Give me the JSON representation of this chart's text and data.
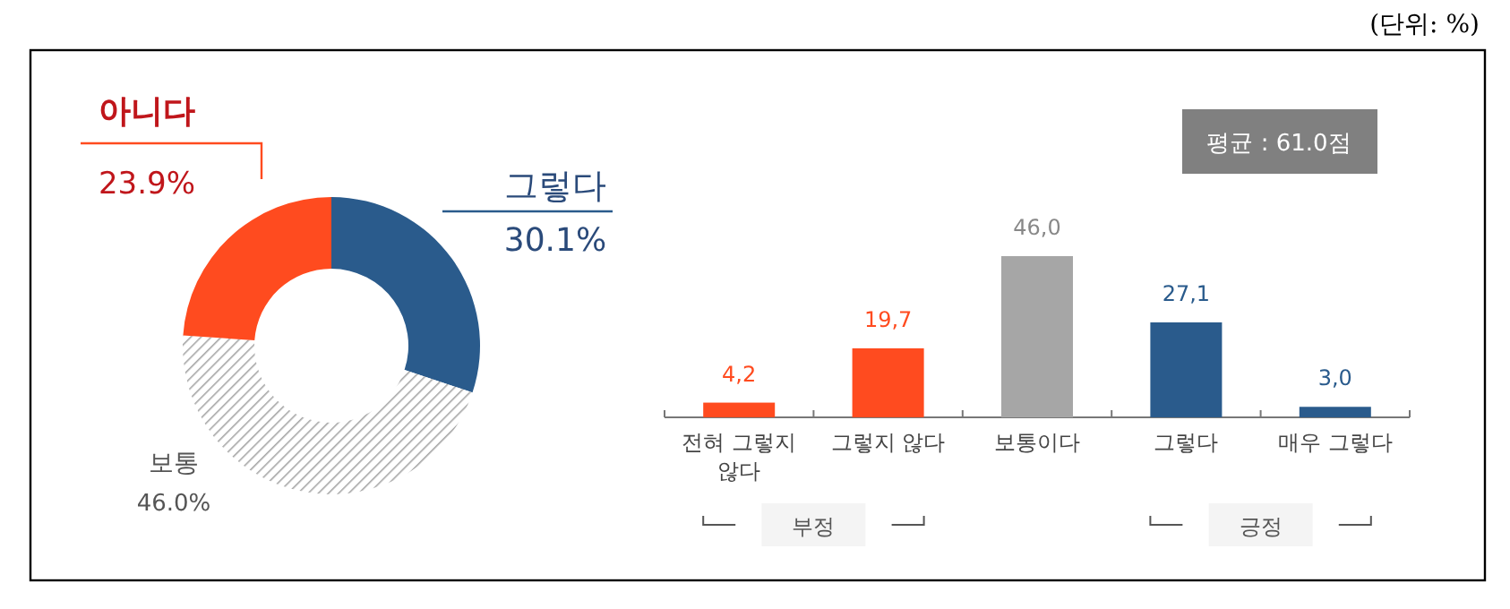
{
  "chart_data": [
    {
      "type": "donut",
      "categories": [
        "그렇다",
        "보통",
        "아니다"
      ],
      "values": [
        30.1,
        46.0,
        23.9
      ],
      "colors": [
        "#2a5b8c",
        "#a6a6a6",
        "#ff4b1f"
      ],
      "value_labels": [
        "30.1%",
        "46.0%",
        "23.9%"
      ],
      "annotations": [
        "(단위: %)"
      ]
    },
    {
      "type": "bar",
      "categories": [
        "전혀 그렇지 않다",
        "그렇지 않다",
        "보통이다",
        "그렇다",
        "매우 그렇다"
      ],
      "values": [
        4.2,
        19.7,
        46.0,
        27.1,
        3.0
      ],
      "colors": [
        "#ff4b1f",
        "#ff4b1f",
        "#a6a6a6",
        "#2a5b8c",
        "#2a5b8c"
      ],
      "value_labels": [
        "4,2",
        "19,7",
        "46,0",
        "27,1",
        "3,0"
      ],
      "annotations": [
        "평균 : 61.0점",
        "부정",
        "긍정"
      ]
    }
  ]
}
